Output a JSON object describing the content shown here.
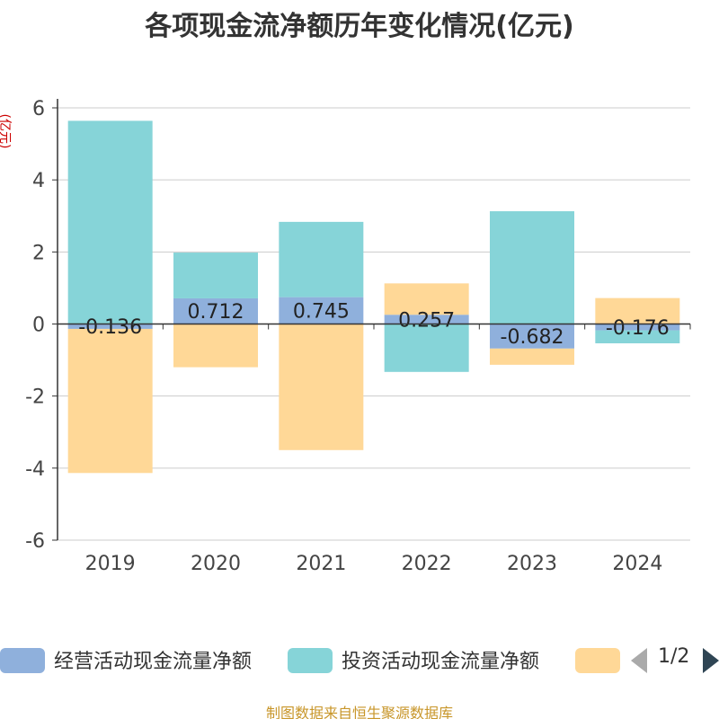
{
  "chart_data": {
    "type": "bar",
    "stacked": true,
    "title": "各项现金流净额历年变化情况(亿元)",
    "ylabel": "(亿元)",
    "xlabel": "",
    "ylim": [
      -6,
      6
    ],
    "yticks": [
      6,
      4,
      2,
      0,
      -2,
      -4,
      -6
    ],
    "grid": true,
    "legend_position": "bottom",
    "categories": [
      "2019",
      "2020",
      "2021",
      "2022",
      "2023",
      "2024"
    ],
    "series": [
      {
        "name": "经营活动现金流量净额",
        "color": "#8fb0dc",
        "values": [
          -0.136,
          0.712,
          0.745,
          0.257,
          -0.682,
          -0.176
        ],
        "labels": [
          "-0.136",
          "0.712",
          "0.745",
          "0.257",
          "-0.682",
          "-0.176"
        ]
      },
      {
        "name": "投资活动现金流量净额",
        "color": "#86d4d8",
        "values": [
          5.64,
          1.27,
          2.09,
          -1.33,
          3.13,
          -0.36
        ]
      },
      {
        "name": "",
        "color": "#ffd897",
        "values": [
          -4.0,
          -1.2,
          -3.5,
          0.87,
          -0.45,
          0.72
        ]
      }
    ]
  },
  "legend": {
    "page": "1/2",
    "prev_icon": "triangle-left-icon",
    "next_icon": "triangle-right-icon"
  },
  "footer": "制图数据来自恒生聚源数据库"
}
